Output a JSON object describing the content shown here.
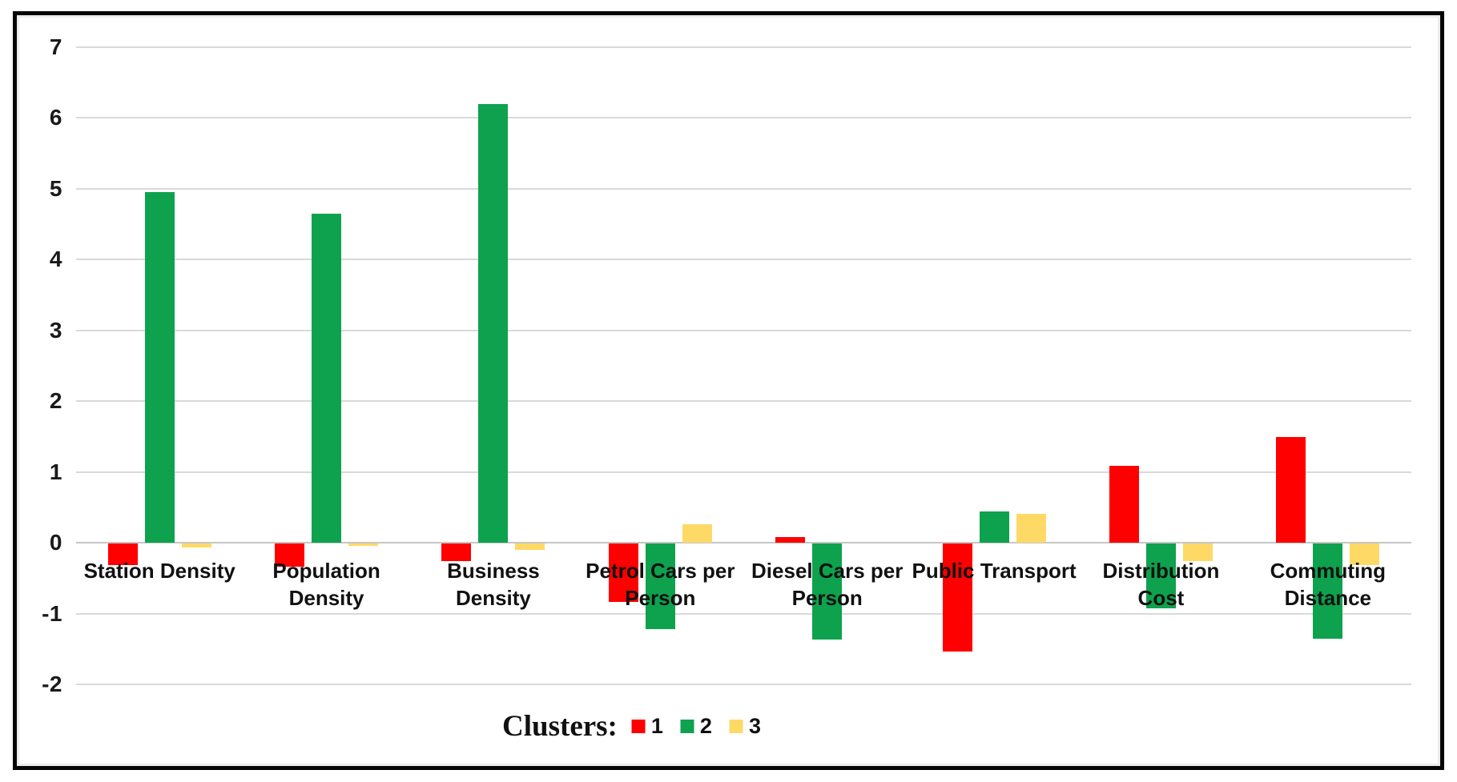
{
  "chart_data": {
    "type": "bar",
    "title": "",
    "categories": [
      "Station Density",
      "Population Density",
      "Business Density",
      "Petrol Cars per Person",
      "Diesel Cars per Person",
      "Public Transport",
      "Distribution Cost",
      "Commuting Distance"
    ],
    "category_label_lines": [
      [
        "Station Density"
      ],
      [
        "Population",
        "Density"
      ],
      [
        "Business",
        "Density"
      ],
      [
        "Petrol Cars per",
        "Person"
      ],
      [
        "Diesel Cars per",
        "Person"
      ],
      [
        "Public Transport"
      ],
      [
        "Distribution",
        "Cost"
      ],
      [
        "Commuting",
        "Distance"
      ]
    ],
    "series": [
      {
        "name": "1",
        "color": "#fe0000",
        "values": [
          -0.31,
          -0.33,
          -0.25,
          -0.82,
          0.08,
          -1.53,
          1.08,
          1.49
        ]
      },
      {
        "name": "2",
        "color": "#0ea24e",
        "values": [
          4.95,
          4.64,
          6.19,
          -1.21,
          -1.36,
          0.44,
          -0.91,
          -1.35
        ]
      },
      {
        "name": "3",
        "color": "#ffd965",
        "values": [
          -0.06,
          -0.03,
          -0.09,
          0.26,
          0.0,
          0.41,
          -0.25,
          -0.31
        ]
      }
    ],
    "ylim": [
      -2,
      7
    ],
    "ytick_step": 1,
    "yticks": [
      "-2",
      "-1",
      "0",
      "1",
      "2",
      "3",
      "4",
      "5",
      "6",
      "7"
    ],
    "xlabel": "",
    "ylabel": "",
    "grid": true,
    "gridline_color": "#d9d9d9",
    "legend": {
      "title": "Clusters:",
      "position": "bottom",
      "entries": [
        "1",
        "2",
        "3"
      ]
    }
  }
}
